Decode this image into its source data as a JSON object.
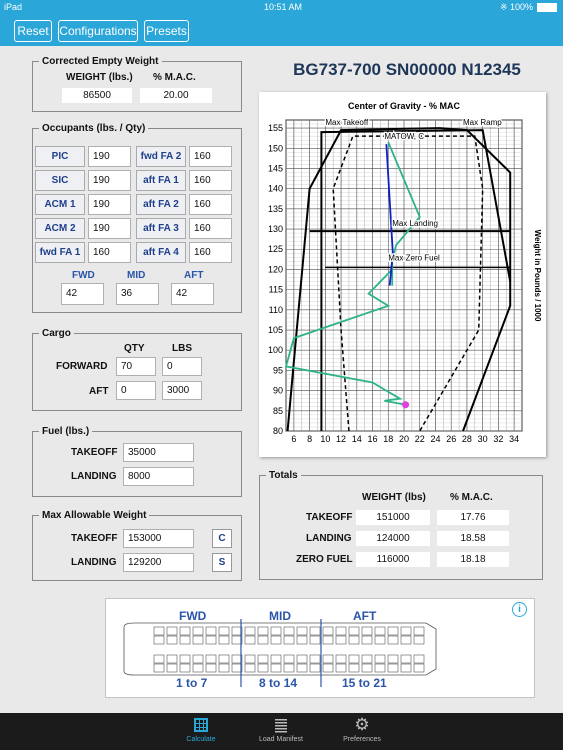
{
  "status": {
    "carrier": "iPad",
    "time": "10:51 AM",
    "battery": "100%"
  },
  "toolbar": {
    "reset": "Reset",
    "configurations": "Configurations",
    "presets": "Presets"
  },
  "empty_weight": {
    "title": "Corrected  Empty Weight",
    "weight_label": "WEIGHT (lbs.)",
    "mac_label": "% M.A.C.",
    "weight": "86500",
    "mac": "20.00"
  },
  "occupants": {
    "title": "Occupants (lbs. / Qty)",
    "rows": [
      {
        "left_label": "PIC",
        "left_value": "190",
        "right_label": "fwd FA 2",
        "right_value": "160"
      },
      {
        "left_label": "SIC",
        "left_value": "190",
        "right_label": "aft FA 1",
        "right_value": "160"
      },
      {
        "left_label": "ACM 1",
        "left_value": "190",
        "right_label": "aft FA 2",
        "right_value": "160"
      },
      {
        "left_label": "ACM 2",
        "left_value": "190",
        "right_label": "aft FA 3",
        "right_value": "160"
      },
      {
        "left_label": "fwd FA 1",
        "left_value": "160",
        "right_label": "aft FA 4",
        "right_value": "160"
      }
    ],
    "zones": [
      {
        "label": "FWD",
        "value": "42"
      },
      {
        "label": "MID",
        "value": "36"
      },
      {
        "label": "AFT",
        "value": "42"
      }
    ]
  },
  "cargo": {
    "title": "Cargo",
    "qty_label": "QTY",
    "lbs_label": "LBS",
    "forward_label": "FORWARD",
    "aft_label": "AFT",
    "forward_qty": "70",
    "forward_lbs": "0",
    "aft_qty": "0",
    "aft_lbs": "3000"
  },
  "fuel": {
    "title": "Fuel (lbs.)",
    "takeoff_label": "TAKEOFF",
    "landing_label": "LANDING",
    "takeoff": "35000",
    "landing": "8000"
  },
  "max_weight": {
    "title": "Max Allowable Weight",
    "takeoff_label": "TAKEOFF",
    "landing_label": "LANDING",
    "takeoff": "153000",
    "landing": "129200",
    "c_button": "C",
    "s_button": "S"
  },
  "aircraft_title": "BG737-700 SN00000 N12345",
  "totals": {
    "title": "Totals",
    "weight_header": "WEIGHT (lbs)",
    "mac_header": "% M.A.C.",
    "rows": [
      {
        "label": "TAKEOFF",
        "weight": "151000",
        "mac": "17.76"
      },
      {
        "label": "LANDING",
        "weight": "124000",
        "mac": "18.58"
      },
      {
        "label": "ZERO FUEL",
        "weight": "116000",
        "mac": "18.18"
      }
    ]
  },
  "seatmap": {
    "zones": [
      {
        "label": "FWD",
        "rows": "1 to 7"
      },
      {
        "label": "MID",
        "rows": "8 to 14"
      },
      {
        "label": "AFT",
        "rows": "15 to 21"
      }
    ],
    "info_icon": "info-icon"
  },
  "tabs": [
    {
      "label": "Calculate",
      "icon": "calculator-icon",
      "active": true
    },
    {
      "label": "Load Manifest",
      "icon": "list-icon",
      "active": false
    },
    {
      "label": "Preferences",
      "icon": "gear-icon",
      "active": false
    }
  ],
  "colors": {
    "accent": "#2aa7d8",
    "title": "#1e3657",
    "loading_line": "#2db38a",
    "flight_line": "#1020c8",
    "marker": "#e040e0"
  },
  "chart_data": {
    "type": "line",
    "title": "Center of Gravity - % MAC",
    "xlabel": "",
    "ylabel": "Weight in Pounds / 1000",
    "xlim": [
      5,
      35
    ],
    "ylim": [
      80,
      157
    ],
    "x_ticks": [
      6,
      8,
      10,
      12,
      14,
      16,
      18,
      20,
      22,
      24,
      26,
      28,
      30,
      32,
      34
    ],
    "y_ticks": [
      80,
      85,
      90,
      95,
      100,
      105,
      110,
      115,
      120,
      125,
      130,
      135,
      140,
      145,
      150,
      155
    ],
    "grid": true,
    "annotations": [
      {
        "text": "Max Takeoff",
        "x": 10,
        "y": 155
      },
      {
        "text": "Max Ramp",
        "x": 27.5,
        "y": 155
      },
      {
        "text": "MATOW, C",
        "x": 17.5,
        "y": 151.5
      },
      {
        "text": "Max Landing",
        "x": 18.5,
        "y": 130
      },
      {
        "text": "Max Zero Fuel",
        "x": 18,
        "y": 121.5
      }
    ],
    "series": [
      {
        "values": [
          [
            5.2,
            80
          ],
          [
            8,
            140
          ],
          [
            12,
            154.5
          ],
          [
            24.5,
            155
          ],
          [
            28,
            154.5
          ],
          [
            33.5,
            144
          ],
          [
            33.5,
            111
          ],
          [
            27.5,
            80
          ]
        ]
      },
      {
        "values": [
          [
            9.5,
            80
          ],
          [
            9.5,
            154
          ],
          [
            30,
            154.5
          ],
          [
            33.5,
            117
          ]
        ]
      },
      {
        "values": [
          [
            13,
            80
          ],
          [
            12,
            105
          ],
          [
            11,
            140
          ],
          [
            13.5,
            153
          ],
          [
            29,
            153
          ],
          [
            30,
            140
          ],
          [
            29.5,
            105
          ],
          [
            22,
            80
          ]
        ]
      },
      {
        "values": [
          [
            8,
            129.5
          ],
          [
            33.5,
            129.5
          ]
        ]
      },
      {
        "values": [
          [
            10,
            120.5
          ],
          [
            33.5,
            120.5
          ]
        ]
      },
      {
        "values": [
          [
            20.2,
            86.5
          ],
          [
            17.5,
            87.5
          ],
          [
            19.5,
            88
          ],
          [
            16,
            92
          ],
          [
            5,
            96
          ],
          [
            6,
            103
          ],
          [
            18,
            111
          ],
          [
            15.5,
            114
          ],
          [
            18.5,
            120
          ],
          [
            18.5,
            116
          ],
          [
            18.5,
            122
          ],
          [
            19,
            126
          ],
          [
            22,
            133
          ],
          [
            18,
            151.5
          ]
        ]
      },
      {
        "values": [
          [
            18.18,
            116
          ],
          [
            18.58,
            124
          ],
          [
            17.76,
            151
          ]
        ]
      }
    ],
    "markers": [
      {
        "x": 20.2,
        "y": 86.5
      }
    ]
  }
}
